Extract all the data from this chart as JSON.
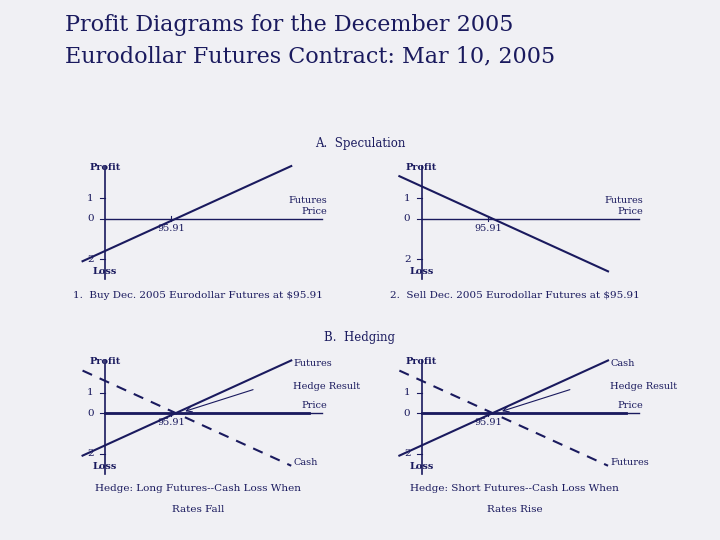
{
  "title_line1": "Profit Diagrams for the December 2005",
  "title_line2": "Eurodollar Futures Contract: Mar 10, 2005",
  "title_fontsize": 16,
  "bg_color": "#f0f0f4",
  "text_color": "#1a1a5e",
  "line_color": "#1a1a5e",
  "section_a_label": "A.  Speculation",
  "section_b_label": "B.  Hedging",
  "futures_price_label": "95.91",
  "subplot1_caption": "1.  Buy Dec. 2005 Eurodollar Futures at $95.91",
  "subplot2_caption": "2.  Sell Dec. 2005 Eurodollar Futures at $95.91",
  "subplot3_caption_l1": "Hedge: Long Futures--Cash Loss When",
  "subplot3_caption_l2": "Rates Fall",
  "subplot4_caption_l1": "Hedge: Short Futures--Cash Loss When",
  "subplot4_caption_l2": "Rates Rise"
}
